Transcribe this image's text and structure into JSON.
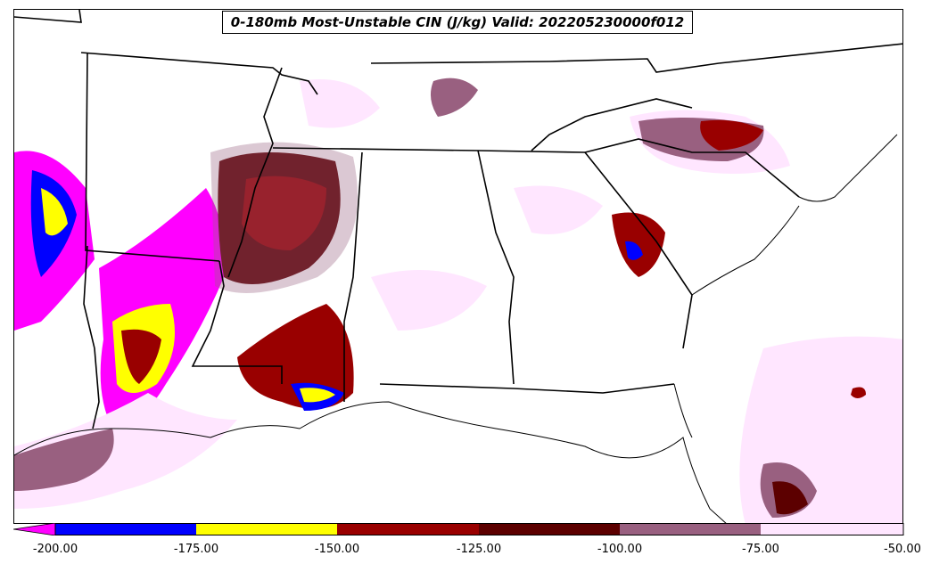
{
  "title": "0-180mb Most-Unstable CIN (J/kg) Valid: 202205230000f012",
  "colorbar": {
    "colors": [
      "#ff00ff",
      "#0000ff",
      "#ffff00",
      "#990000",
      "#5c0000",
      "#996080",
      "#ffe6ff"
    ],
    "levels": [
      "-200.00",
      "-175.00",
      "-150.00",
      "-125.00",
      "-100.00",
      "-75.00",
      "-50.00"
    ]
  },
  "map": {
    "region": "Southeastern United States",
    "field": "CIN"
  }
}
